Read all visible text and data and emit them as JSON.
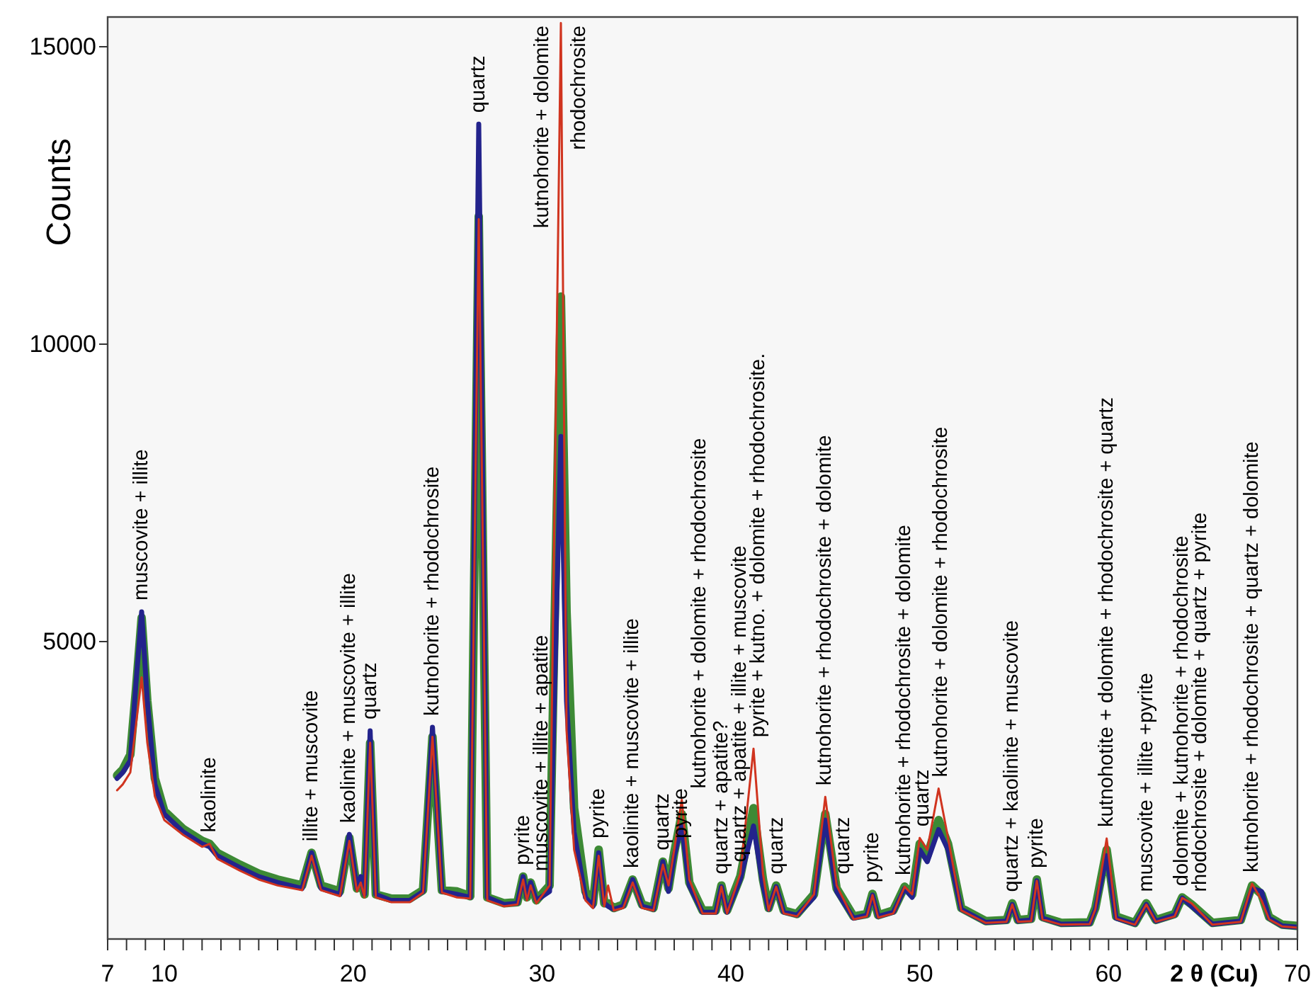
{
  "chart_data": {
    "type": "line",
    "ylabel": "Counts",
    "xlabel": "2 θ (Cu)",
    "xlim": [
      7,
      70
    ],
    "ylim": [
      0,
      15500
    ],
    "yticks": [
      5000,
      10000,
      15000
    ],
    "xticks": [
      7,
      {
        "value": 8,
        "label": null
      },
      {
        "value": 9,
        "label": null
      },
      10,
      {
        "value": 11,
        "label": null
      },
      {
        "value": 12,
        "label": null
      },
      {
        "value": 13,
        "label": null
      },
      {
        "value": 14,
        "label": null
      },
      {
        "value": 15,
        "label": null
      },
      {
        "value": 16,
        "label": null
      },
      {
        "value": 17,
        "label": null
      },
      {
        "value": 18,
        "label": null
      },
      {
        "value": 19,
        "label": null
      },
      20,
      {
        "value": 21,
        "label": null
      },
      {
        "value": 22,
        "label": null
      },
      {
        "value": 23,
        "label": null
      },
      {
        "value": 24,
        "label": null
      },
      {
        "value": 25,
        "label": null
      },
      {
        "value": 26,
        "label": null
      },
      {
        "value": 27,
        "label": null
      },
      {
        "value": 28,
        "label": null
      },
      {
        "value": 29,
        "label": null
      },
      30,
      {
        "value": 31,
        "label": null
      },
      {
        "value": 32,
        "label": null
      },
      {
        "value": 33,
        "label": null
      },
      {
        "value": 34,
        "label": null
      },
      {
        "value": 35,
        "label": null
      },
      {
        "value": 36,
        "label": null
      },
      {
        "value": 37,
        "label": null
      },
      {
        "value": 38,
        "label": null
      },
      {
        "value": 39,
        "label": null
      },
      40,
      {
        "value": 41,
        "label": null
      },
      {
        "value": 42,
        "label": null
      },
      {
        "value": 43,
        "label": null
      },
      {
        "value": 44,
        "label": null
      },
      {
        "value": 45,
        "label": null
      },
      {
        "value": 46,
        "label": null
      },
      {
        "value": 47,
        "label": null
      },
      {
        "value": 48,
        "label": null
      },
      {
        "value": 49,
        "label": null
      },
      50,
      {
        "value": 51,
        "label": null
      },
      {
        "value": 52,
        "label": null
      },
      {
        "value": 53,
        "label": null
      },
      {
        "value": 54,
        "label": null
      },
      {
        "value": 55,
        "label": null
      },
      {
        "value": 56,
        "label": null
      },
      {
        "value": 57,
        "label": null
      },
      {
        "value": 58,
        "label": null
      },
      {
        "value": 59,
        "label": null
      },
      60,
      {
        "value": 61,
        "label": null
      },
      {
        "value": 62,
        "label": null
      },
      {
        "value": 63,
        "label": null
      },
      {
        "value": 64,
        "label": null
      },
      {
        "value": 65,
        "label": null
      },
      {
        "value": 66,
        "label": null
      },
      {
        "value": 67,
        "label": null
      },
      {
        "value": 68,
        "label": null
      },
      {
        "value": 69,
        "label": null
      },
      70
    ],
    "x": [
      7.5,
      7.8,
      8.2,
      8.5,
      8.8,
      9.1,
      9.5,
      10,
      11,
      12,
      12.4,
      12.8,
      14,
      15,
      16,
      17.3,
      17.8,
      18.3,
      19.3,
      19.8,
      20.2,
      20.4,
      20.6,
      20.9,
      21.2,
      22,
      23,
      23.7,
      24.2,
      24.7,
      25.5,
      26.2,
      26.65,
      27.1,
      28,
      28.7,
      29.0,
      29.2,
      29.4,
      29.7,
      30.4,
      31.0,
      31.3,
      31.7,
      32.3,
      32.7,
      33.0,
      33.3,
      33.5,
      33.8,
      34.3,
      34.8,
      35.3,
      35.9,
      36.4,
      36.7,
      37.0,
      37.4,
      37.8,
      38.5,
      39.2,
      39.5,
      39.8,
      40.5,
      41.2,
      41.7,
      42.0,
      42.4,
      42.8,
      43.5,
      44.4,
      45.0,
      45.6,
      46.5,
      47.2,
      47.5,
      47.8,
      48.6,
      49.2,
      49.6,
      50.0,
      50.4,
      51.0,
      51.5,
      52.2,
      53.5,
      54.6,
      54.9,
      55.2,
      55.9,
      56.2,
      56.5,
      57.5,
      59.0,
      59.3,
      59.9,
      60.4,
      61.4,
      62.0,
      62.5,
      63.5,
      63.9,
      64.4,
      65.5,
      67.0,
      67.6,
      68.1,
      68.5,
      69.2,
      70
    ],
    "series": [
      {
        "color": "#23238c",
        "values": [
          2700,
          2800,
          3000,
          4300,
          5500,
          4000,
          2600,
          2100,
          1800,
          1600,
          1550,
          1400,
          1200,
          1050,
          950,
          850,
          1450,
          850,
          750,
          1760,
          850,
          1050,
          750,
          3500,
          750,
          650,
          650,
          800,
          3560,
          800,
          750,
          700,
          13700,
          700,
          580,
          600,
          1050,
          700,
          950,
          650,
          800,
          8450,
          4000,
          1800,
          700,
          550,
          1450,
          600,
          550,
          500,
          550,
          1000,
          550,
          500,
          1300,
          800,
          1400,
          1900,
          900,
          450,
          450,
          880,
          450,
          1000,
          1900,
          900,
          500,
          880,
          450,
          400,
          700,
          2000,
          800,
          350,
          400,
          740,
          380,
          450,
          850,
          700,
          1500,
          1300,
          1840,
          1500,
          500,
          280,
          300,
          580,
          300,
          320,
          980,
          350,
          250,
          260,
          500,
          1400,
          350,
          250,
          580,
          300,
          400,
          690,
          550,
          250,
          300,
          850,
          800,
          350,
          220,
          200
        ]
      },
      {
        "color": "#3d8a35",
        "values": [
          2750,
          2850,
          3100,
          4200,
          5400,
          4000,
          2700,
          2150,
          1850,
          1650,
          1600,
          1450,
          1250,
          1100,
          1000,
          900,
          1450,
          900,
          800,
          1700,
          850,
          1000,
          750,
          3300,
          750,
          680,
          680,
          820,
          3400,
          820,
          800,
          720,
          12150,
          700,
          600,
          620,
          1050,
          700,
          950,
          650,
          900,
          10800,
          5500,
          2200,
          800,
          600,
          1500,
          600,
          600,
          520,
          580,
          1000,
          580,
          520,
          1300,
          850,
          1450,
          2100,
          950,
          480,
          480,
          900,
          480,
          1050,
          2200,
          1000,
          520,
          900,
          480,
          420,
          750,
          2100,
          850,
          380,
          420,
          760,
          400,
          480,
          880,
          750,
          1600,
          1400,
          2000,
          1600,
          520,
          300,
          320,
          600,
          320,
          340,
          1000,
          370,
          270,
          280,
          520,
          1500,
          380,
          270,
          600,
          320,
          420,
          700,
          580,
          270,
          320,
          900,
          750,
          370,
          240,
          220
        ]
      },
      {
        "color": "#d0341f",
        "values": [
          2500,
          2600,
          2800,
          3600,
          4400,
          3300,
          2400,
          2000,
          1750,
          1550,
          1600,
          1350,
          1150,
          1000,
          900,
          820,
          1400,
          820,
          720,
          1650,
          800,
          950,
          700,
          3300,
          700,
          620,
          620,
          780,
          3400,
          780,
          700,
          680,
          12100,
          650,
          550,
          580,
          1000,
          650,
          900,
          600,
          900,
          15400,
          3500,
          1500,
          650,
          520,
          1400,
          550,
          900,
          480,
          520,
          950,
          520,
          480,
          1250,
          900,
          1500,
          2340,
          1000,
          430,
          430,
          880,
          430,
          1100,
          3200,
          1100,
          480,
          880,
          430,
          380,
          750,
          2390,
          900,
          330,
          380,
          740,
          360,
          430,
          880,
          750,
          1700,
          1500,
          2530,
          1700,
          480,
          270,
          290,
          580,
          290,
          300,
          980,
          330,
          240,
          250,
          500,
          1690,
          340,
          240,
          580,
          290,
          380,
          690,
          600,
          240,
          290,
          930,
          650,
          330,
          210,
          190
        ]
      }
    ],
    "annotations": [
      {
        "text": "muscovite + illite",
        "x": 8.8,
        "y": 5500
      },
      {
        "text": "kaolinite",
        "x": 12.4,
        "y": 1600
      },
      {
        "text": "illite + muscovite",
        "x": 17.8,
        "y": 1450
      },
      {
        "text": "kaolinite + muscovite + illite",
        "x": 19.8,
        "y": 1760
      },
      {
        "text": "quartz",
        "x": 20.9,
        "y": 3500
      },
      {
        "text": "kutnohorite + rhodochrosite",
        "x": 24.2,
        "y": 3560
      },
      {
        "text": "quartz",
        "x": 26.65,
        "y": 13700
      },
      {
        "text": "pyrite",
        "x": 29.0,
        "y": 1050
      },
      {
        "text": "muscovite + illite + apatite",
        "x": 29.4,
        "y": 950
      },
      {
        "text": "kutnohorite + dolomite",
        "x": 31.0,
        "y": 15400
      },
      {
        "text": "rhodochrosite",
        "x": 31.0,
        "y": 15400
      },
      {
        "text": "pyrite",
        "x": 33.0,
        "y": 1500
      },
      {
        "text": "kaolinite + muscovite + illite",
        "x": 34.8,
        "y": 1000
      },
      {
        "text": "quartz",
        "x": 36.4,
        "y": 1300
      },
      {
        "text": "pyrite",
        "x": 37.0,
        "y": 1500
      },
      {
        "text": "kutnohorite + dolomite + rhodochrosite",
        "x": 37.4,
        "y": 2340
      },
      {
        "text": "quartz + apatite?",
        "x": 39.5,
        "y": 900
      },
      {
        "text": "quartz + apatite + illite + muscovite",
        "x": 40.5,
        "y": 1100
      },
      {
        "text": "pyrite + kutno. + dolomite + rhodochrosite.",
        "x": 41.2,
        "y": 3200
      },
      {
        "text": "quartz",
        "x": 42.4,
        "y": 900
      },
      {
        "text": "kutnohorite + rhodochrosite + dolomite",
        "x": 45.0,
        "y": 2390
      },
      {
        "text": "quartz",
        "x": 45.6,
        "y": 900
      },
      {
        "text": "pyrite",
        "x": 47.5,
        "y": 760
      },
      {
        "text": "kutnohorite + rhodochrosite + dolomite",
        "x": 49.2,
        "y": 880
      },
      {
        "text": "quartz",
        "x": 50.0,
        "y": 1700
      },
      {
        "text": "kutnohorite + dolomite + rhodochrosite",
        "x": 51.0,
        "y": 2530
      },
      {
        "text": "quartz + kaolinite + muscovite",
        "x": 54.9,
        "y": 600
      },
      {
        "text": "pyrite",
        "x": 56.2,
        "y": 1000
      },
      {
        "text": "kutnohotite + dolomite + rhodochrosite + quartz",
        "x": 59.9,
        "y": 1690
      },
      {
        "text": "muscovite + illite +pyrite",
        "x": 62.0,
        "y": 600
      },
      {
        "text": "dolomite + kutnohorite + rhodochrosite",
        "x": 63.9,
        "y": 700
      },
      {
        "text": "rhodochrosite + dolomite + quartz + pyrite",
        "x": 64.4,
        "y": 600
      },
      {
        "text": "kutnohorite + rhodochrosite + quartz + dolomite",
        "x": 67.6,
        "y": 930
      }
    ]
  }
}
